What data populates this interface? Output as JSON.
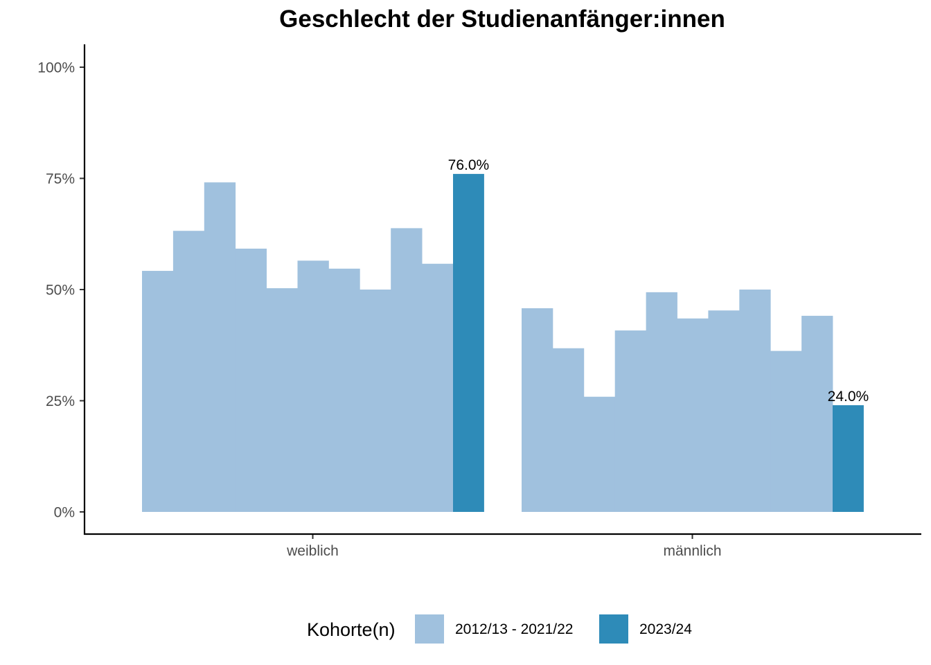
{
  "chart_data": {
    "type": "bar",
    "title": "Geschlecht der Studienanfänger:innen",
    "xlabel": "",
    "ylabel": "",
    "categories": [
      "weiblich",
      "männlich"
    ],
    "ylim": [
      0,
      1.05
    ],
    "yticks": [
      0,
      0.25,
      0.5,
      0.75,
      1.0
    ],
    "ytick_labels": [
      "0%",
      "25%",
      "50%",
      "75%",
      "100%"
    ],
    "grid": false,
    "legend_position": "bottom",
    "legend_title": "Kohorte(n)",
    "series": [
      {
        "name": "2012/13 - 2021/22",
        "color": "#a0c1de",
        "values": [
          [
            0.542,
            0.632,
            0.741,
            0.592,
            0.503,
            0.565,
            0.547,
            0.5,
            0.638,
            0.558
          ],
          [
            0.458,
            0.368,
            0.259,
            0.408,
            0.494,
            0.435,
            0.453,
            0.5,
            0.362,
            0.441
          ]
        ]
      },
      {
        "name": "2023/24",
        "color": "#2e8bb8",
        "values": [
          0.76,
          0.24
        ],
        "labels": [
          "76.0%",
          "24.0%"
        ]
      }
    ]
  }
}
